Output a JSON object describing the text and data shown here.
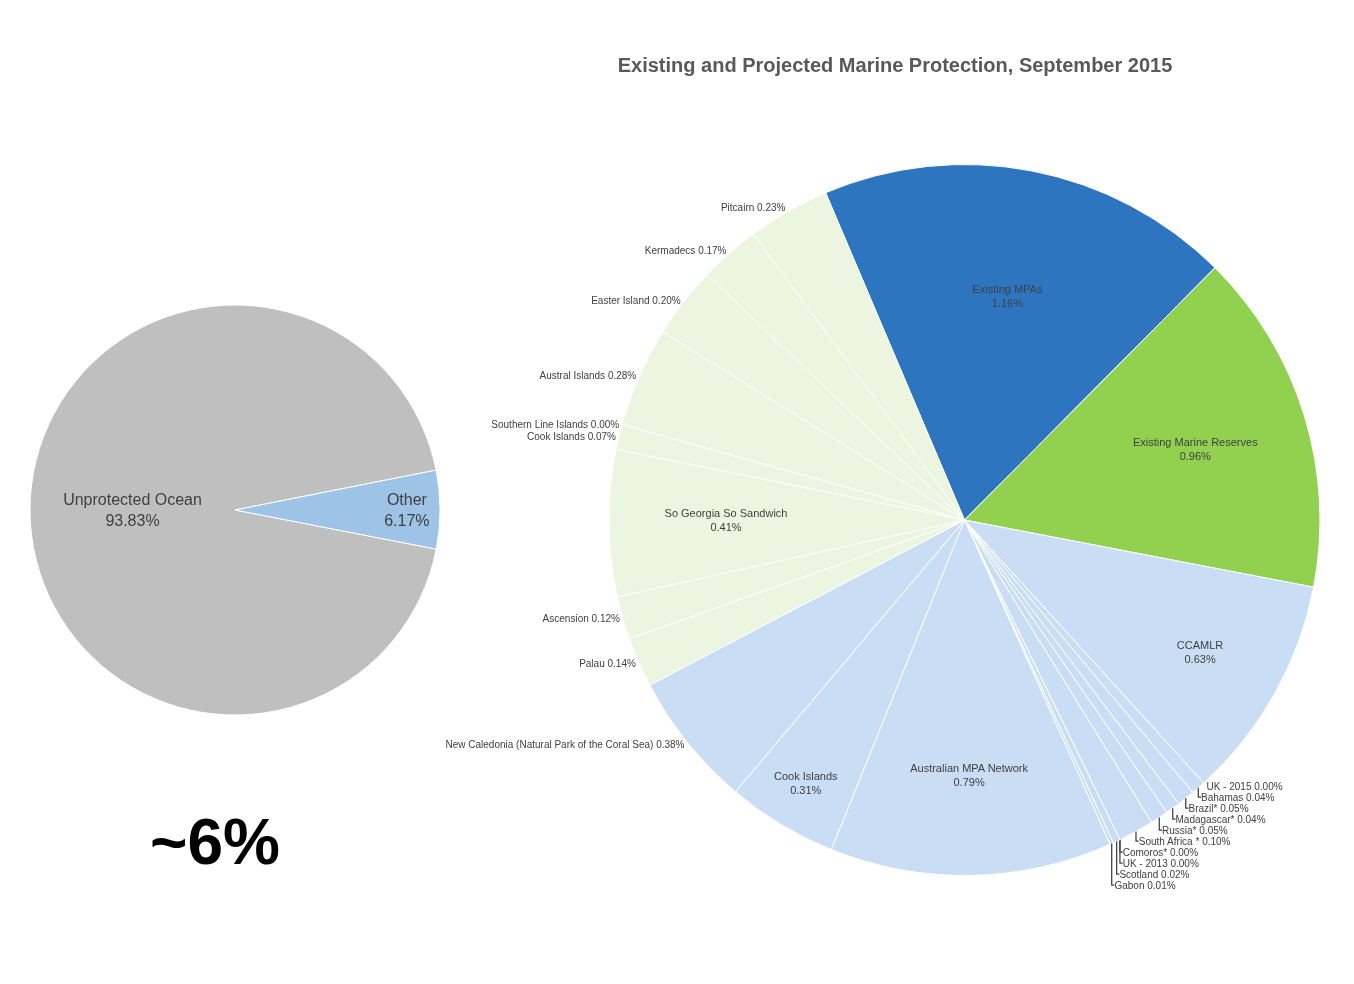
{
  "chart_data": [
    {
      "type": "pie",
      "categories": [
        "Unprotected Ocean",
        "Other"
      ],
      "values": [
        93.83,
        6.17
      ],
      "colors": [
        "#bfbfbf",
        "#9dc3e6"
      ],
      "value_labels": [
        "93.83%",
        "6.17%"
      ],
      "annotations": [
        "~6%"
      ]
    },
    {
      "type": "pie",
      "title": "Existing and Projected Marine Protection, September 2015",
      "value_labels": [
        "1.16%",
        "0.96%",
        "0.63%",
        "0.00%",
        "0.04%",
        "0.05%",
        "0.04%",
        "0.05%",
        "0.10%",
        "0.00%",
        "0.00%",
        "0.02%",
        "0.01%",
        "0.79%",
        "0.31%",
        "0.38%",
        "0.14%",
        "0.12%",
        "0.41%",
        "0.07%",
        "0.00%",
        "0.28%",
        "0.20%",
        "0.17%",
        "0.23%"
      ],
      "categories": [
        "Existing MPAs",
        "Existing Marine Reserves",
        "CCAMLR",
        "UK - 2015",
        "Bahamas",
        "Brazil*",
        "Madagascar*",
        "Russia*",
        "South Africa *",
        "Comoros*",
        "UK - 2013",
        "Scotland",
        "Gabon",
        "Australian MPA Network",
        "Cook Islands",
        "New Caledonia (Natural Park of the Coral Sea)",
        "Palau",
        "Ascension",
        "So Georgia So Sandwich",
        "Cook Islands",
        "Southern Line Islands",
        "Austral Islands",
        "Easter Island",
        "Kermadecs",
        "Pitcairn"
      ],
      "values": [
        1.16,
        0.96,
        0.63,
        0.0,
        0.04,
        0.05,
        0.04,
        0.05,
        0.1,
        0.0,
        0.0,
        0.02,
        0.01,
        0.79,
        0.31,
        0.38,
        0.14,
        0.12,
        0.41,
        0.07,
        0.0,
        0.28,
        0.2,
        0.17,
        0.23
      ],
      "colors": [
        "#2e75c0",
        "#92d050",
        "#c9def4",
        "#c9def4",
        "#c9def4",
        "#c9def4",
        "#c9def4",
        "#c9def4",
        "#c9def4",
        "#c9def4",
        "#c9def4",
        "#c9def4",
        "#c9def4",
        "#c9def4",
        "#c9def4",
        "#c9def4",
        "#ebf5df",
        "#ebf5df",
        "#ebf5df",
        "#ebf5df",
        "#ebf5df",
        "#ebf5df",
        "#ebf5df",
        "#ebf5df",
        "#ebf5df"
      ]
    }
  ]
}
